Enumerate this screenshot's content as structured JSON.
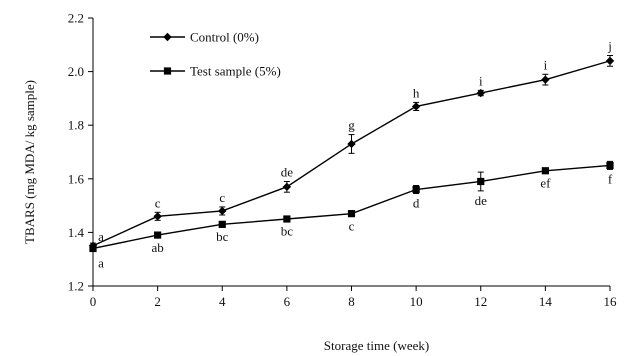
{
  "chart_data": {
    "type": "line",
    "xlabel": "Storage time (week)",
    "ylabel": "TBARS (mg MDA/ kg sample)",
    "x": [
      0,
      2,
      4,
      6,
      8,
      10,
      12,
      14,
      16
    ],
    "xticks": [
      "0",
      "2",
      "4",
      "6",
      "8",
      "10",
      "12",
      "14",
      "16"
    ],
    "yticks": [
      "1.2",
      "1.4",
      "1.6",
      "1.8",
      "2.0",
      "2.2"
    ],
    "xlim": [
      0,
      16
    ],
    "ylim": [
      1.2,
      2.2
    ],
    "grid": false,
    "legend_position": "top-left",
    "series": [
      {
        "name": "Control (0%)",
        "marker": "diamond",
        "color": "#000000",
        "values": [
          1.35,
          1.46,
          1.48,
          1.57,
          1.73,
          1.87,
          1.92,
          1.97,
          2.04
        ],
        "errors": [
          0.01,
          0.015,
          0.015,
          0.02,
          0.035,
          0.015,
          0.01,
          0.02,
          0.02
        ],
        "labels": [
          "a",
          "c",
          "c",
          "de",
          "g",
          "h",
          "i",
          "i",
          "j"
        ]
      },
      {
        "name": "Test sample (5%)",
        "marker": "square",
        "color": "#000000",
        "values": [
          1.34,
          1.39,
          1.43,
          1.45,
          1.47,
          1.56,
          1.59,
          1.63,
          1.65
        ],
        "errors": [
          0.01,
          0.01,
          0.01,
          0.01,
          0.01,
          0.015,
          0.035,
          0.01,
          0.015
        ],
        "labels": [
          "a",
          "ab",
          "bc",
          "bc",
          "c",
          "d",
          "de",
          "ef",
          "f"
        ]
      }
    ]
  }
}
